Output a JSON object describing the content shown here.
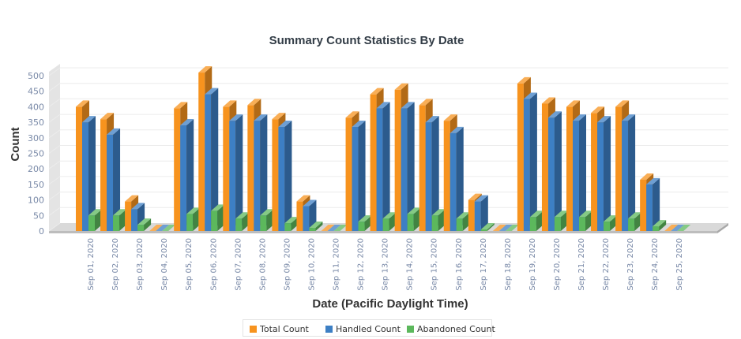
{
  "chart_data": {
    "type": "bar",
    "title": "Summary Count Statistics By Date",
    "xlabel": "Date (Pacific Daylight Time)",
    "ylabel": "Count",
    "ylim": [
      0,
      520
    ],
    "yticks": [
      0,
      50,
      100,
      150,
      200,
      250,
      300,
      350,
      400,
      450,
      500
    ],
    "grid": true,
    "legend_position": "bottom",
    "categories": [
      "Sep 01, 2020",
      "Sep 02, 2020",
      "Sep 03, 2020",
      "Sep 04, 2020",
      "Sep 05, 2020",
      "Sep 06, 2020",
      "Sep 07, 2020",
      "Sep 08, 2020",
      "Sep 09, 2020",
      "Sep 10, 2020",
      "Sep 11, 2020",
      "Sep 12, 2020",
      "Sep 13, 2020",
      "Sep 14, 2020",
      "Sep 15, 2020",
      "Sep 16, 2020",
      "Sep 17, 2020",
      "Sep 18, 2020",
      "Sep 19, 2020",
      "Sep 20, 2020",
      "Sep 21, 2020",
      "Sep 22, 2020",
      "Sep 23, 2020",
      "Sep 24, 2020",
      "Sep 25, 2020"
    ],
    "series": [
      {
        "name": "Total Count",
        "color": "#f7931e",
        "values": [
          400,
          360,
          95,
          0,
          395,
          510,
          400,
          405,
          360,
          95,
          0,
          365,
          440,
          455,
          405,
          355,
          100,
          0,
          475,
          410,
          400,
          380,
          400,
          165,
          0
        ]
      },
      {
        "name": "Handled Count",
        "color": "#3d7fc4",
        "values": [
          350,
          310,
          70,
          0,
          340,
          440,
          355,
          355,
          335,
          80,
          0,
          335,
          395,
          395,
          350,
          315,
          95,
          0,
          425,
          365,
          355,
          350,
          355,
          150,
          0
        ]
      },
      {
        "name": "Abandoned Count",
        "color": "#5cb85c",
        "values": [
          50,
          50,
          20,
          0,
          55,
          65,
          40,
          50,
          25,
          10,
          0,
          30,
          40,
          55,
          50,
          40,
          5,
          0,
          45,
          45,
          45,
          30,
          40,
          15,
          0
        ]
      }
    ]
  }
}
